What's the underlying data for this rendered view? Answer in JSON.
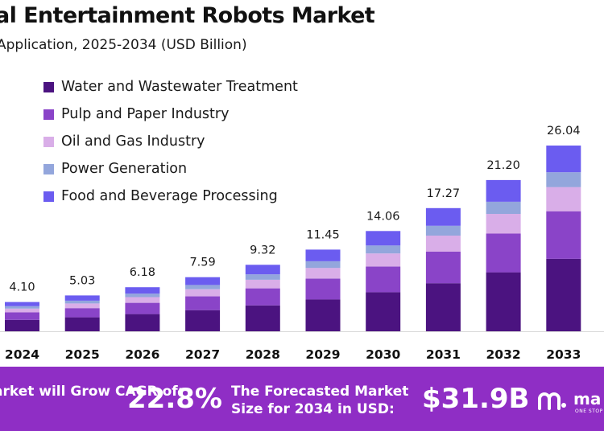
{
  "header": {
    "title": "al Entertainment Robots Market",
    "subtitle": "Application, 2025-2034 (USD Billion)"
  },
  "colors": {
    "water": "#4b1380",
    "pulp": "#8a44c8",
    "oil": "#d9aee8",
    "power": "#93a6dc",
    "food": "#6b5cf0",
    "footer": "#8f2ec5"
  },
  "chart_data": {
    "type": "bar",
    "stacked": true,
    "categories": [
      "2024",
      "2025",
      "2026",
      "2027",
      "2028",
      "2029",
      "2030",
      "2031",
      "2032",
      "2033"
    ],
    "totals": [
      4.1,
      5.03,
      6.18,
      7.59,
      9.32,
      11.45,
      14.06,
      17.27,
      21.2,
      26.04
    ],
    "total_labels": [
      "4.10",
      "5.03",
      "6.18",
      "7.59",
      "9.32",
      "11.45",
      "14.06",
      "17.27",
      "21.20",
      "26.04"
    ],
    "series": [
      {
        "name": "Water and Wastewater Treatment",
        "color": "#4b1380",
        "values": [
          1.6,
          1.96,
          2.41,
          2.96,
          3.63,
          4.47,
          5.48,
          6.74,
          8.27,
          10.16
        ]
      },
      {
        "name": "Pulp and Paper Industry",
        "color": "#8a44c8",
        "values": [
          1.05,
          1.29,
          1.58,
          1.94,
          2.39,
          2.93,
          3.6,
          4.42,
          5.43,
          6.67
        ]
      },
      {
        "name": "Oil and Gas Industry",
        "color": "#d9aee8",
        "values": [
          0.53,
          0.65,
          0.8,
          0.99,
          1.21,
          1.49,
          1.83,
          2.25,
          2.76,
          3.39
        ]
      },
      {
        "name": "Power Generation",
        "color": "#93a6dc",
        "values": [
          0.33,
          0.4,
          0.49,
          0.61,
          0.75,
          0.92,
          1.12,
          1.38,
          1.7,
          2.08
        ]
      },
      {
        "name": "Food and Beverage Processing",
        "color": "#6b5cf0",
        "values": [
          0.59,
          0.73,
          0.9,
          1.09,
          1.34,
          1.64,
          2.03,
          2.48,
          3.04,
          3.74
        ]
      }
    ],
    "legend_position": "top-left",
    "grid": false
  },
  "footer": {
    "grow_text": "arket will Grow CAGR of:",
    "cagr": "22.8%",
    "forecast_text": "The Forecasted Market Size for 2034 in USD:",
    "size": "$31.9B",
    "logo_text": "ma",
    "logo_sub": "ONE STOP"
  }
}
